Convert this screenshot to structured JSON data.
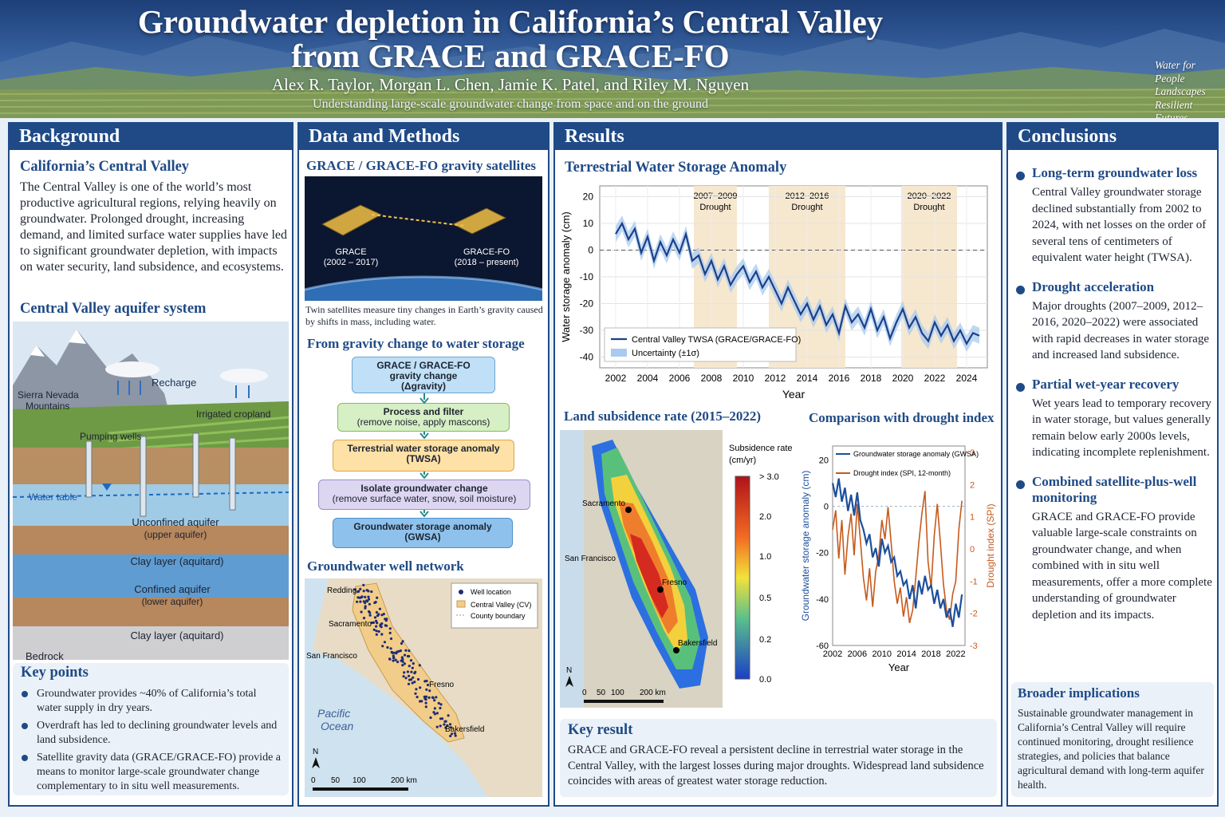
{
  "header": {
    "title_line1": "Groundwater depletion in California’s Central Valley",
    "title_line2": "from GRACE and GRACE-FO",
    "authors": "Alex R. Taylor, Morgan L. Chen, Jamie K. Patel, and Riley M. Nguyen",
    "tagline": "Understanding large-scale groundwater change from space and on the ground",
    "motto": [
      "Water for",
      "People",
      "Landscapes",
      "Resilient Futures"
    ]
  },
  "background": {
    "heading": "Background",
    "sub1": "California’s Central Valley",
    "intro": "The Central Valley is one of the world’s most productive agricultural regions, relying heavily on groundwater. Prolonged drought, increasing demand, and limited surface water supplies have led to significant groundwater depletion, with impacts on water security, land subsidence, and ecosystems.",
    "sub2": "Central Valley aquifer system",
    "aquifer_labels": {
      "recharge": "Recharge",
      "mountains_l1": "Sierra Nevada",
      "mountains_l2": "Mountains",
      "cropland": "Irrigated cropland",
      "wells": "Pumping wells",
      "water_table": "Water table",
      "unconfined_l1": "Unconfined aquifer",
      "unconfined_l2": "(upper aquifer)",
      "clay1": "Clay layer (aquitard)",
      "confined_l1": "Confined aquifer",
      "confined_l2": "(lower aquifer)",
      "clay2": "Clay layer (aquitard)",
      "bedrock": "Bedrock"
    },
    "keypoints_heading": "Key points",
    "keypoints": [
      "Groundwater provides ~40% of California’s total water supply in dry years.",
      "Overdraft has led to declining groundwater levels and land subsidence.",
      "Satellite gravity data (GRACE/GRACE-FO) provide a means to monitor large-scale groundwater change complementary to in situ well measurements."
    ]
  },
  "methods": {
    "heading": "Data and Methods",
    "sub1": "GRACE / GRACE-FO gravity satellites",
    "sat1_name": "GRACE",
    "sat1_years": "(2002 – 2017)",
    "sat2_name": "GRACE-FO",
    "sat2_years": "(2018 – present)",
    "caption": "Twin satellites measure tiny changes in Earth’s gravity caused by shifts in mass, including water.",
    "sub2": "From gravity change to water storage",
    "flow": [
      {
        "l1": "GRACE / GRACE-FO",
        "l2": "gravity change",
        "l3": "(Δgravity)"
      },
      {
        "l1": "Process and filter",
        "l2": "(remove noise, apply mascons)"
      },
      {
        "l1": "Terrestrial water storage anomaly",
        "l2": "(TWSA)"
      },
      {
        "l1": "Isolate groundwater change",
        "l2": "(remove surface water, snow, soil moisture)"
      },
      {
        "l1": "Groundwater storage anomaly",
        "l2": "(GWSA)"
      }
    ],
    "sub3": "Groundwater well network",
    "map": {
      "legend": [
        "Well location",
        "Central Valley (CV)",
        "County boundary"
      ],
      "cities": [
        "Redding",
        "Sacramento",
        "San Francisco",
        "Fresno",
        "Bakersfield"
      ],
      "ocean_l1": "Pacific",
      "ocean_l2": "Ocean",
      "north": "N",
      "scale": [
        "0",
        "50",
        "100",
        "200 km"
      ]
    }
  },
  "results": {
    "heading": "Results",
    "sub1": "Terrestrial Water Storage Anomaly",
    "sub2": "Land subsidence rate (2015–2022)",
    "sub3": "Comparison with drought index",
    "subsidence_map": {
      "cities": [
        "Sacramento",
        "San Francisco",
        "Fresno",
        "Bakersfield"
      ],
      "legend_title_l1": "Subsidence rate",
      "legend_title_l2": "(cm/yr)",
      "legend_ticks": [
        "> 3.0",
        "2.0",
        "1.0",
        "0.5",
        "0.2",
        "0.0"
      ],
      "north": "N",
      "scale": [
        "0",
        "50",
        "100",
        "200 km"
      ]
    },
    "key_result_heading": "Key result",
    "key_result": "GRACE and GRACE-FO reveal a persistent decline in terrestrial water storage in the Central Valley, with the largest losses during major droughts. Widespread land subsidence coincides with areas of greatest water storage reduction."
  },
  "chart_data": [
    {
      "type": "line",
      "title": "Terrestrial Water Storage Anomaly",
      "xlabel": "Year",
      "ylabel": "Water storage anomaly (cm)",
      "xlim": [
        2001,
        2025.3
      ],
      "ylim": [
        -44,
        24
      ],
      "xticks": [
        "2002",
        "2004",
        "2006",
        "2008",
        "2010",
        "2012",
        "2014",
        "2016",
        "2018",
        "2020",
        "2022",
        "2024"
      ],
      "yticks": [
        "20",
        "10",
        "0",
        "-10",
        "-20",
        "-30",
        "-40"
      ],
      "grid": true,
      "legend": "bottom-left",
      "drought_periods": [
        {
          "label_l1": "2007–2009",
          "label_l2": "Drought",
          "start": 2006.9,
          "end": 2009.6
        },
        {
          "label_l1": "2012–2016",
          "label_l2": "Drought",
          "start": 2011.6,
          "end": 2016.4
        },
        {
          "label_l1": "2020–2022",
          "label_l2": "Drought",
          "start": 2019.9,
          "end": 2023.4
        }
      ],
      "series": [
        {
          "name": "Central Valley TWSA (GRACE/GRACE-FO)",
          "color": "#1c3f8a",
          "x": [
            2002.0,
            2002.4,
            2002.8,
            2003.2,
            2003.6,
            2004.0,
            2004.4,
            2004.8,
            2005.2,
            2005.6,
            2006.0,
            2006.4,
            2006.8,
            2007.2,
            2007.6,
            2008.0,
            2008.4,
            2008.8,
            2009.2,
            2009.6,
            2010.0,
            2010.4,
            2010.8,
            2011.2,
            2011.6,
            2012.0,
            2012.4,
            2012.8,
            2013.2,
            2013.6,
            2014.0,
            2014.4,
            2014.8,
            2015.2,
            2015.6,
            2016.0,
            2016.4,
            2016.8,
            2017.2,
            2017.6,
            2018.0,
            2018.4,
            2018.8,
            2019.2,
            2019.6,
            2020.0,
            2020.4,
            2020.8,
            2021.2,
            2021.6,
            2022.0,
            2022.4,
            2022.8,
            2023.2,
            2023.6,
            2024.0,
            2024.4,
            2024.8
          ],
          "values": [
            6,
            10,
            4,
            8,
            -1,
            5,
            -4,
            3,
            -2,
            4,
            -1,
            6,
            -4,
            -2,
            -9,
            -4,
            -11,
            -6,
            -13,
            -9,
            -6,
            -12,
            -8,
            -14,
            -10,
            -15,
            -20,
            -14,
            -19,
            -24,
            -20,
            -26,
            -21,
            -28,
            -24,
            -31,
            -21,
            -27,
            -24,
            -29,
            -22,
            -30,
            -25,
            -33,
            -27,
            -22,
            -29,
            -25,
            -31,
            -34,
            -27,
            -32,
            -28,
            -34,
            -30,
            -35,
            -31,
            -32
          ]
        },
        {
          "name": "Uncertainty (±1σ)",
          "color": "#a9cbed",
          "band_halfwidth": 3
        }
      ]
    },
    {
      "type": "line",
      "title": "Comparison with drought index",
      "xlabel": "Year",
      "ylabel": "Groundwater storage anomaly (cm)",
      "y2label": "Drought index (SPI)",
      "xlim": [
        2002,
        2023.5
      ],
      "ylim": [
        -60,
        26
      ],
      "y2lim": [
        -3,
        3.2
      ],
      "xticks": [
        "2002",
        "2006",
        "2010",
        "2014",
        "2018",
        "2022"
      ],
      "yticks": [
        "20",
        "0",
        "-20",
        "-40",
        "-60"
      ],
      "y2ticks": [
        "3",
        "2",
        "1",
        "0",
        "-1",
        "-2",
        "-3"
      ],
      "legend": "top-left",
      "series": [
        {
          "name": "Groundwater storage anomaly (GWSA)",
          "axis": "left",
          "color": "#1c4f9c",
          "x": [
            2002,
            2002.5,
            2003,
            2003.5,
            2004,
            2004.5,
            2005,
            2005.5,
            2006,
            2006.5,
            2007,
            2007.5,
            2008,
            2008.5,
            2009,
            2009.5,
            2010,
            2010.5,
            2011,
            2011.5,
            2012,
            2012.5,
            2013,
            2013.5,
            2014,
            2014.5,
            2015,
            2015.5,
            2016,
            2016.5,
            2017,
            2017.5,
            2018,
            2018.5,
            2019,
            2019.5,
            2020,
            2020.5,
            2021,
            2021.5,
            2022,
            2022.5,
            2023
          ],
          "values": [
            10,
            4,
            12,
            2,
            8,
            -2,
            5,
            -4,
            6,
            -6,
            -10,
            -16,
            -12,
            -22,
            -18,
            -26,
            -14,
            -20,
            -17,
            -24,
            -22,
            -30,
            -28,
            -34,
            -32,
            -40,
            -34,
            -44,
            -32,
            -38,
            -30,
            -36,
            -34,
            -42,
            -36,
            -44,
            -40,
            -48,
            -44,
            -52,
            -42,
            -48,
            -38
          ]
        },
        {
          "name": "Drought index (SPI, 12-month)",
          "axis": "right",
          "color": "#c8591b",
          "x": [
            2002,
            2002.5,
            2003,
            2003.5,
            2004,
            2004.5,
            2005,
            2005.5,
            2006,
            2006.5,
            2007,
            2007.5,
            2008,
            2008.5,
            2009,
            2009.5,
            2010,
            2010.5,
            2011,
            2011.5,
            2012,
            2012.5,
            2013,
            2013.5,
            2014,
            2014.5,
            2015,
            2015.5,
            2016,
            2016.5,
            2017,
            2017.5,
            2018,
            2018.5,
            2019,
            2019.5,
            2020,
            2020.5,
            2021,
            2021.5,
            2022,
            2022.5,
            2023
          ],
          "values": [
            0.6,
            1.2,
            -0.3,
            0.9,
            -0.8,
            0.4,
            1.1,
            -0.2,
            1.4,
            0.3,
            -0.9,
            -1.6,
            -0.6,
            -1.8,
            -0.7,
            -0.2,
            0.9,
            0.3,
            1.3,
            0.2,
            -1.0,
            -1.7,
            -1.2,
            -2.1,
            -1.5,
            -2.3,
            -1.9,
            -0.9,
            0.2,
            1.1,
            1.8,
            -0.4,
            -1.2,
            0.4,
            1.4,
            0.2,
            -1.1,
            -1.9,
            -2.2,
            -1.4,
            -1.0,
            0.6,
            1.5
          ]
        }
      ]
    }
  ],
  "conclusions": {
    "heading": "Conclusions",
    "items": [
      {
        "h": "Long-term groundwater loss",
        "t": "Central Valley groundwater storage declined substantially from 2002 to 2024, with net losses on the order of several tens of centimeters of equivalent water height (TWSA)."
      },
      {
        "h": "Drought acceleration",
        "t": "Major droughts (2007–2009, 2012–2016, 2020–2022) were associated with rapid decreases in water storage and increased land subsidence."
      },
      {
        "h": "Partial wet-year recovery",
        "t": "Wet years lead to temporary recovery in water storage, but values generally remain below early 2000s levels, indicating incomplete replenishment."
      },
      {
        "h": "Combined satellite-plus-well monitoring",
        "t": "GRACE and GRACE-FO provide valuable large-scale constraints on groundwater change, and when combined with in situ well measurements, offer a more complete understanding of groundwater depletion and its impacts."
      }
    ],
    "implications_heading": "Broader implications",
    "implications": "Sustainable groundwater management in California’s Central Valley will require continued monitoring, drought resilience strategies, and policies that balance agricultural demand with long-term aquifer health."
  },
  "colors": {
    "accent": "#1f4a86",
    "twsa_line": "#1c3f8a",
    "uncertainty": "#a9cbed",
    "drought_shade": "#f6e7cf",
    "spi_line": "#c8591b"
  }
}
